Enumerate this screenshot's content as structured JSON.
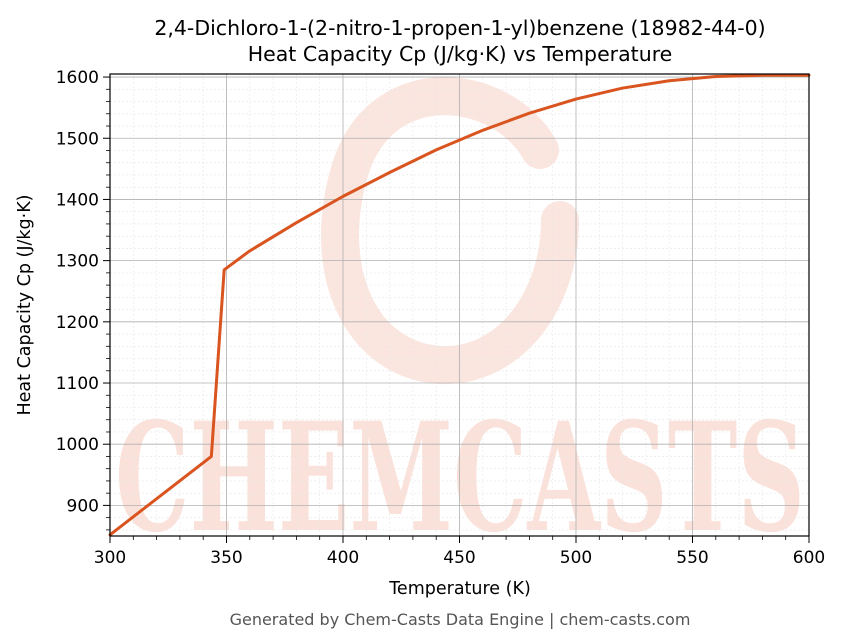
{
  "title_line1": "2,4-Dichloro-1-(2-nitro-1-propen-1-yl)benzene (18982-44-0)",
  "title_line2": "Heat Capacity Cp (J/kg·K) vs Temperature",
  "footer": "Generated by Chem-Casts Data Engine | chem-casts.com",
  "watermark": "CHEMCASTS",
  "colors": {
    "line": "#d9541e",
    "watermark": "#f8cfc4",
    "grid_major": "#b0b0b0",
    "grid_minor": "#e6e6e6"
  },
  "chart_data": {
    "type": "line",
    "title": "2,4-Dichloro-1-(2-nitro-1-propen-1-yl)benzene (18982-44-0)\nHeat Capacity Cp (J/kg·K) vs Temperature",
    "xlabel": "Temperature (K)",
    "ylabel": "Heat Capacity Cp (J/kg·K)",
    "xlim": [
      300,
      600
    ],
    "ylim": [
      850,
      1605
    ],
    "xticks": [
      300,
      350,
      400,
      450,
      500,
      550,
      600
    ],
    "yticks": [
      900,
      1000,
      1100,
      1200,
      1300,
      1400,
      1500,
      1600
    ],
    "grid": true,
    "legend": "none",
    "series": [
      {
        "x": [
          300,
          343.5,
          349,
          360,
          380,
          400,
          420,
          440,
          460,
          480,
          500,
          520,
          540,
          560,
          580,
          600
        ],
        "y": [
          852,
          980,
          1285,
          1316,
          1362,
          1405,
          1444,
          1481,
          1513,
          1541,
          1564,
          1582,
          1594,
          1601,
          1603,
          1603
        ]
      }
    ]
  }
}
